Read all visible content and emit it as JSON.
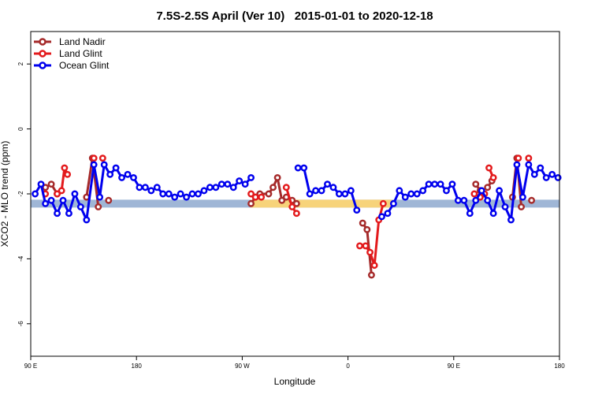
{
  "chart_data": {
    "type": "line",
    "title": "7.5S-2.5S April (Ver 10)   2015-01-01 to 2020-12-18",
    "xlabel": "Longitude",
    "ylabel": "XCO2 - MLO trend (ppm)",
    "xlim": [
      0,
      360
    ],
    "ylim": [
      -7,
      3
    ],
    "x_ticks": [
      {
        "value": 0,
        "label": "90 E"
      },
      {
        "value": 72,
        "label": "180"
      },
      {
        "value": 144,
        "label": "90 W"
      },
      {
        "value": 216,
        "label": "0"
      },
      {
        "value": 288,
        "label": "90 E"
      },
      {
        "value": 360,
        "label": "180"
      }
    ],
    "y_ticks": [
      {
        "value": 2,
        "label": "2"
      },
      {
        "value": 0,
        "label": "0"
      },
      {
        "value": -2,
        "label": "-2"
      },
      {
        "value": -4,
        "label": "-4"
      },
      {
        "value": -6,
        "label": "-6"
      }
    ],
    "grid": false,
    "legend_position": "top-left",
    "bands": [
      {
        "y": -2.3,
        "color": "#9fb6d6",
        "x0": 0,
        "x1": 360
      },
      {
        "y": -2.3,
        "color": "#f7d37a",
        "x0": 150,
        "x1": 246
      }
    ],
    "series": [
      {
        "name": "Land Nadir",
        "color": "#a52a2a",
        "segments": [
          [
            [
              10,
              -1.8
            ],
            [
              14,
              -1.7
            ],
            [
              18,
              -2.0
            ]
          ],
          [
            [
              38,
              -2.1
            ],
            [
              42,
              -0.9
            ],
            [
              46,
              -2.4
            ]
          ],
          [
            [
              53,
              -2.2
            ]
          ],
          [
            [
              150,
              -2.3
            ],
            [
              153,
              -2.1
            ],
            [
              156,
              -2.0
            ],
            [
              162,
              -2.0
            ],
            [
              165,
              -1.8
            ],
            [
              168,
              -1.5
            ],
            [
              171,
              -2.2
            ]
          ],
          [
            [
              174,
              -2.1
            ],
            [
              178,
              -2.2
            ],
            [
              181,
              -2.3
            ]
          ],
          [
            [
              226,
              -2.9
            ],
            [
              229,
              -3.1
            ],
            [
              232,
              -4.5
            ]
          ],
          [
            [
              303,
              -1.7
            ],
            [
              306,
              -1.9
            ]
          ],
          [
            [
              311,
              -1.8
            ],
            [
              314,
              -1.6
            ]
          ],
          [
            [
              328,
              -2.1
            ],
            [
              331,
              -0.9
            ],
            [
              334,
              -2.4
            ]
          ],
          [
            [
              341,
              -2.2
            ]
          ]
        ]
      },
      {
        "name": "Land Glint",
        "color": "#e31a1c",
        "segments": [
          [
            [
              10,
              -2.0
            ]
          ],
          [
            [
              18,
              -2.0
            ],
            [
              21,
              -1.9
            ],
            [
              23,
              -1.2
            ],
            [
              25,
              -1.4
            ]
          ],
          [
            [
              43,
              -0.9
            ]
          ],
          [
            [
              49,
              -0.9
            ]
          ],
          [
            [
              150,
              -2.0
            ],
            [
              153,
              -2.1
            ],
            [
              157,
              -2.1
            ]
          ],
          [
            [
              174,
              -1.8
            ],
            [
              178,
              -2.4
            ],
            [
              181,
              -2.6
            ]
          ],
          [
            [
              224,
              -3.6
            ],
            [
              228,
              -3.6
            ],
            [
              231,
              -3.8
            ],
            [
              234,
              -4.2
            ],
            [
              237,
              -2.8
            ],
            [
              240,
              -2.3
            ]
          ],
          [
            [
              302,
              -2.0
            ],
            [
              306,
              -2.1
            ],
            [
              309,
              -2.0
            ]
          ],
          [
            [
              312,
              -1.2
            ],
            [
              315,
              -1.5
            ]
          ],
          [
            [
              332,
              -0.9
            ]
          ],
          [
            [
              339,
              -0.9
            ]
          ]
        ]
      },
      {
        "name": "Ocean Glint",
        "color": "#0000ee",
        "segments": [
          [
            [
              3,
              -2.0
            ],
            [
              7,
              -1.7
            ],
            [
              10,
              -2.3
            ],
            [
              14,
              -2.2
            ],
            [
              18,
              -2.6
            ],
            [
              22,
              -2.2
            ],
            [
              26,
              -2.6
            ],
            [
              30,
              -2.0
            ],
            [
              34,
              -2.4
            ],
            [
              38,
              -2.8
            ],
            [
              43,
              -1.1
            ],
            [
              47,
              -2.1
            ],
            [
              50,
              -1.1
            ],
            [
              54,
              -1.4
            ],
            [
              58,
              -1.2
            ],
            [
              62,
              -1.5
            ],
            [
              66,
              -1.4
            ],
            [
              70,
              -1.5
            ],
            [
              74,
              -1.8
            ],
            [
              78,
              -1.8
            ],
            [
              82,
              -1.9
            ],
            [
              86,
              -1.8
            ],
            [
              90,
              -2.0
            ],
            [
              94,
              -2.0
            ],
            [
              98,
              -2.1
            ],
            [
              102,
              -2.0
            ],
            [
              106,
              -2.1
            ],
            [
              110,
              -2.0
            ],
            [
              114,
              -2.0
            ],
            [
              118,
              -1.9
            ],
            [
              122,
              -1.8
            ],
            [
              126,
              -1.8
            ],
            [
              130,
              -1.7
            ],
            [
              134,
              -1.7
            ],
            [
              138,
              -1.8
            ],
            [
              142,
              -1.6
            ],
            [
              146,
              -1.7
            ],
            [
              150,
              -1.5
            ]
          ],
          [
            [
              182,
              -1.2
            ],
            [
              186,
              -1.2
            ],
            [
              190,
              -2.0
            ],
            [
              194,
              -1.9
            ],
            [
              198,
              -1.9
            ],
            [
              202,
              -1.7
            ],
            [
              206,
              -1.8
            ],
            [
              210,
              -2.0
            ],
            [
              214,
              -2.0
            ],
            [
              218,
              -1.9
            ],
            [
              222,
              -2.5
            ]
          ],
          [
            [
              239,
              -2.7
            ],
            [
              243,
              -2.6
            ],
            [
              247,
              -2.3
            ],
            [
              251,
              -1.9
            ],
            [
              255,
              -2.1
            ],
            [
              259,
              -2.0
            ],
            [
              263,
              -2.0
            ],
            [
              267,
              -1.9
            ],
            [
              271,
              -1.7
            ],
            [
              275,
              -1.7
            ],
            [
              279,
              -1.7
            ],
            [
              283,
              -1.9
            ],
            [
              287,
              -1.7
            ],
            [
              291,
              -2.2
            ],
            [
              295,
              -2.2
            ],
            [
              299,
              -2.6
            ],
            [
              303,
              -2.2
            ],
            [
              307,
              -1.9
            ],
            [
              311,
              -2.2
            ],
            [
              315,
              -2.6
            ],
            [
              319,
              -1.9
            ],
            [
              323,
              -2.4
            ],
            [
              327,
              -2.8
            ],
            [
              331,
              -1.1
            ],
            [
              335,
              -2.1
            ],
            [
              339,
              -1.1
            ],
            [
              343,
              -1.4
            ],
            [
              347,
              -1.2
            ],
            [
              351,
              -1.5
            ],
            [
              355,
              -1.4
            ],
            [
              359,
              -1.5
            ]
          ]
        ]
      }
    ]
  }
}
